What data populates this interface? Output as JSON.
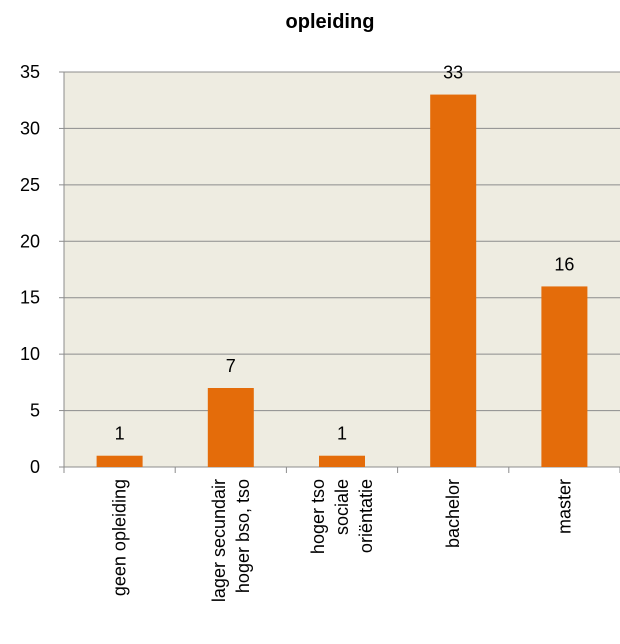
{
  "chart_data": {
    "type": "bar",
    "title": "opleiding",
    "categories": [
      [
        "geen opleiding"
      ],
      [
        "lager secundair",
        "hoger bso, tso"
      ],
      [
        "hoger tso",
        "sociale",
        "oriëntatie"
      ],
      [
        "bachelor"
      ],
      [
        "master"
      ]
    ],
    "values": [
      1,
      7,
      1,
      33,
      16
    ],
    "ylim": [
      0,
      35
    ],
    "yticks": [
      0,
      5,
      10,
      15,
      20,
      25,
      30,
      35
    ],
    "grid": true,
    "legend": "none",
    "bar_color": "#E46C0A",
    "plot_background": "#EEECE1"
  }
}
